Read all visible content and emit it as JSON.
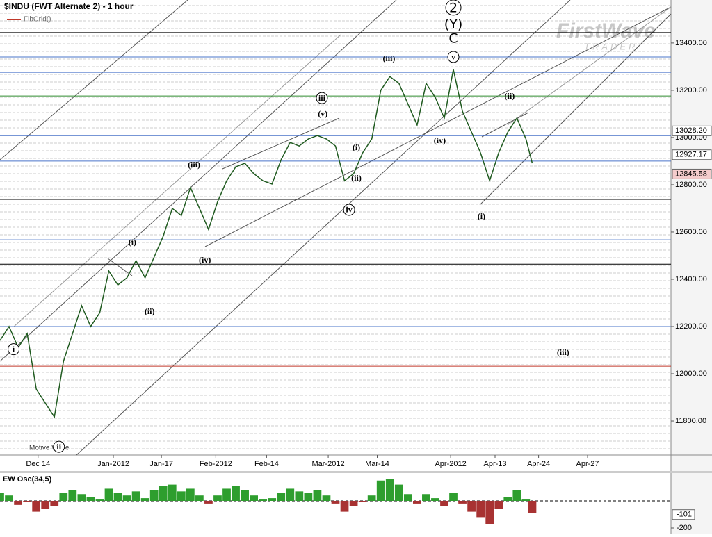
{
  "header": {
    "title": "$INDU (FWT Alternate 2) - 1 hour",
    "indicator": "FibGrid()",
    "logo": "FirstWave",
    "logo_sub": "TRADER",
    "footer_label": "Motive Wave"
  },
  "chart_data": [
    {
      "type": "line",
      "xlim": [
        0,
        74
      ],
      "xticks": [
        {
          "value": 4.2,
          "label": "Dec 14"
        },
        {
          "value": 12.5,
          "label": "Jan-2012"
        },
        {
          "value": 17.8,
          "label": "Jan-17"
        },
        {
          "value": 23.8,
          "label": "Feb-2012"
        },
        {
          "value": 29.4,
          "label": "Feb-14"
        },
        {
          "value": 36.2,
          "label": "Mar-2012"
        },
        {
          "value": 41.6,
          "label": "Mar-14"
        },
        {
          "value": 49.7,
          "label": "Apr-2012"
        },
        {
          "value": 54.6,
          "label": "Apr-13"
        },
        {
          "value": 59.4,
          "label": "Apr-24"
        },
        {
          "value": 64.8,
          "label": "Apr-27"
        }
      ],
      "ylim": [
        11656,
        13582
      ],
      "yticks": [
        {
          "value": 11800,
          "label": "11800.00"
        },
        {
          "value": 12000,
          "label": "12000.00"
        },
        {
          "value": 12200,
          "label": "12200.00"
        },
        {
          "value": 12400,
          "label": "12400.00"
        },
        {
          "value": 12600,
          "label": "12600.00"
        },
        {
          "value": 12800,
          "label": "12800.00"
        },
        {
          "value": 13000,
          "label": "13000.00"
        },
        {
          "value": 13200,
          "label": "13200.00"
        },
        {
          "value": 13400,
          "label": "13400.00"
        }
      ],
      "x": [
        0,
        1,
        2,
        3,
        4,
        5,
        6,
        7,
        8,
        9,
        10,
        11,
        12,
        13,
        14,
        15,
        16,
        17,
        18,
        19,
        20,
        21,
        22,
        23,
        24,
        25,
        26,
        27,
        28,
        29,
        30,
        31,
        32,
        33,
        34,
        35,
        36,
        37,
        38,
        39,
        40,
        41,
        42,
        43,
        44,
        45,
        46,
        47,
        48,
        49,
        50,
        51,
        52,
        53,
        54,
        55,
        56,
        57,
        58,
        58.7
      ],
      "series": [
        {
          "color": "#1f5a1f",
          "values": [
            12141,
            12200,
            12111,
            12170,
            11935,
            11876,
            11817,
            12053,
            12170,
            12288,
            12200,
            12258,
            12435,
            12376,
            12406,
            12479,
            12406,
            12494,
            12582,
            12700,
            12670,
            12788,
            12700,
            12611,
            12729,
            12817,
            12876,
            12891,
            12847,
            12817,
            12803,
            12906,
            12979,
            12964,
            12994,
            13008,
            12994,
            12964,
            12817,
            12847,
            12935,
            12994,
            13200,
            13258,
            13229,
            13141,
            13053,
            13229,
            13170,
            13082,
            13288,
            13111,
            13023,
            12935,
            12817,
            12935,
            13023,
            13082,
            12994,
            12891
          ]
        }
      ],
      "levels": [
        {
          "value": 13444,
          "color": "#000000"
        },
        {
          "value": 13341,
          "color": "#4a74c9"
        },
        {
          "value": 13276,
          "color": "#4a74c9"
        },
        {
          "value": 13176,
          "color": "#2e8b2e"
        },
        {
          "value": 13008,
          "color": "#4a74c9"
        },
        {
          "value": 12900,
          "color": "#4a74c9"
        },
        {
          "value": 12738,
          "color": "#000000"
        },
        {
          "value": 12567,
          "color": "#4a74c9"
        },
        {
          "value": 12464,
          "color": "#000000"
        },
        {
          "value": 12200,
          "color": "#4a74c9"
        },
        {
          "value": 12032,
          "color": "#c0392b"
        }
      ],
      "price_markers": [
        {
          "value": 13028.2,
          "label": "13028.20",
          "color": "#ffffff"
        },
        {
          "value": 12927.17,
          "label": "12927.17",
          "color": "#ffffff"
        },
        {
          "value": 12845.58,
          "label": "12845.58",
          "color": "#f4cccc"
        }
      ],
      "annotations": [
        {
          "text": "i",
          "x": 1.5,
          "y": 12104,
          "circled": true
        },
        {
          "text": "(i)",
          "x": 14.6,
          "y": 12556,
          "circled": false
        },
        {
          "text": "(ii)",
          "x": 16.5,
          "y": 12264,
          "circled": false
        },
        {
          "text": "(iii)",
          "x": 21.4,
          "y": 12885,
          "circled": false
        },
        {
          "text": "(iv)",
          "x": 22.6,
          "y": 12482,
          "circled": false
        },
        {
          "text": "iii",
          "x": 35.5,
          "y": 13167,
          "circled": true
        },
        {
          "text": "(v)",
          "x": 35.6,
          "y": 13100,
          "circled": false
        },
        {
          "text": "(i)",
          "x": 39.3,
          "y": 12958,
          "circled": false
        },
        {
          "text": "(ii)",
          "x": 39.3,
          "y": 12829,
          "circled": false
        },
        {
          "text": "iv",
          "x": 38.5,
          "y": 12694,
          "circled": true
        },
        {
          "text": "(iii)",
          "x": 42.9,
          "y": 13335,
          "circled": false
        },
        {
          "text": "v",
          "x": 50.0,
          "y": 13341,
          "circled": true
        },
        {
          "text": "(iv)",
          "x": 48.5,
          "y": 12988,
          "circled": false
        },
        {
          "text": "(i)",
          "x": 53.1,
          "y": 12667,
          "circled": false
        },
        {
          "text": "(ii)",
          "x": 56.2,
          "y": 13176,
          "circled": false
        },
        {
          "text": "(iii)",
          "x": 62.1,
          "y": 12091,
          "circled": false
        },
        {
          "text": "ii",
          "x": 6.5,
          "y": 11691,
          "circled": true
        },
        {
          "text": "2",
          "x": 50.0,
          "y": 13550,
          "circled": true
        },
        {
          "text": "(Y)",
          "x": 50.0,
          "y": 13480,
          "circled": false
        },
        {
          "text": "C",
          "x": 50.0,
          "y": 13420,
          "circled": false
        }
      ]
    },
    {
      "type": "bar",
      "title": "EW Osc(34,5)",
      "ylim": [
        -241,
        200
      ],
      "yticks": [
        -200
      ],
      "marker": {
        "value": -101,
        "label": "-101"
      },
      "colors": {
        "up": "#2e9e2e",
        "down": "#a83232"
      },
      "values": [
        60,
        40,
        -30,
        -10,
        -80,
        -60,
        -40,
        60,
        80,
        50,
        30,
        10,
        90,
        60,
        40,
        70,
        20,
        80,
        110,
        120,
        70,
        90,
        40,
        -20,
        40,
        90,
        110,
        80,
        40,
        10,
        20,
        60,
        90,
        70,
        60,
        80,
        40,
        -20,
        -80,
        -40,
        -10,
        40,
        150,
        160,
        120,
        50,
        -20,
        50,
        20,
        -40,
        60,
        -20,
        -80,
        -120,
        -170,
        -60,
        30,
        80,
        10,
        -90
      ]
    }
  ]
}
